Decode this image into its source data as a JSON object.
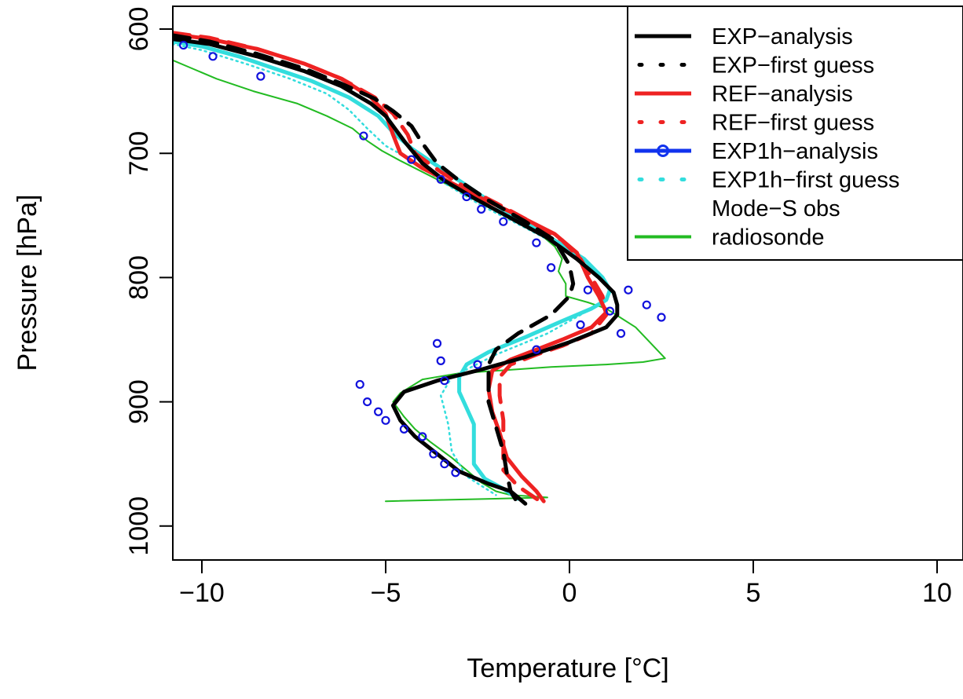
{
  "chart_data": {
    "type": "line",
    "xlabel": "Temperature [°C]",
    "ylabel": "Pressure [hPa]",
    "xlim": [
      -10.8,
      10.8
    ],
    "ylim": [
      1025,
      590
    ],
    "y_reversed": true,
    "x_ticks": [
      {
        "value": -10,
        "label": "−10"
      },
      {
        "value": -5,
        "label": "−5"
      },
      {
        "value": 0,
        "label": "0"
      },
      {
        "value": 5,
        "label": "5"
      },
      {
        "value": 10,
        "label": "10"
      }
    ],
    "y_ticks": [
      {
        "value": 600,
        "label": "600"
      },
      {
        "value": 700,
        "label": "700"
      },
      {
        "value": 800,
        "label": "800"
      },
      {
        "value": 900,
        "label": "900"
      },
      {
        "value": 1000,
        "label": "1000"
      }
    ],
    "grid": false,
    "legend": {
      "position": "top-right"
    },
    "series": [
      {
        "name": "radiosonde",
        "color": "#22bb22",
        "style": "solid-thin",
        "points": [
          [
            -10.8,
            625
          ],
          [
            -10.4,
            630
          ],
          [
            -9.6,
            640
          ],
          [
            -8.6,
            650
          ],
          [
            -7.4,
            660
          ],
          [
            -6.6,
            670
          ],
          [
            -5.9,
            680
          ],
          [
            -5.5,
            690
          ],
          [
            -5.1,
            698
          ],
          [
            -4.6,
            706
          ],
          [
            -3.8,
            718
          ],
          [
            -3.0,
            730
          ],
          [
            -2.0,
            745
          ],
          [
            -1.0,
            760
          ],
          [
            -0.4,
            775
          ],
          [
            -0.2,
            785
          ],
          [
            -0.3,
            795
          ],
          [
            -0.1,
            805
          ],
          [
            -0.1,
            815
          ],
          [
            0.5,
            820
          ],
          [
            1.0,
            825
          ],
          [
            1.8,
            840
          ],
          [
            2.6,
            865
          ],
          [
            2.0,
            868
          ],
          [
            1.0,
            870
          ],
          [
            -0.5,
            872
          ],
          [
            -1.5,
            874
          ],
          [
            -3.0,
            877
          ],
          [
            -4.0,
            882
          ],
          [
            -4.6,
            893
          ],
          [
            -4.8,
            900
          ],
          [
            -4.5,
            912
          ],
          [
            -4.2,
            922
          ],
          [
            -3.8,
            932
          ],
          [
            -3.2,
            945
          ],
          [
            -2.8,
            955
          ],
          [
            -2.4,
            965
          ],
          [
            -2.0,
            972
          ],
          [
            -1.6,
            975
          ],
          [
            -0.6,
            977
          ],
          [
            -5.0,
            980
          ]
        ]
      },
      {
        "name": "EXP1h−first guess",
        "color": "#33dddd",
        "style": "dotted",
        "points": [
          [
            -10.8,
            612
          ],
          [
            -10.0,
            617
          ],
          [
            -8.8,
            628
          ],
          [
            -7.6,
            640
          ],
          [
            -6.6,
            652
          ],
          [
            -6.0,
            665
          ],
          [
            -5.5,
            680
          ],
          [
            -5.0,
            694
          ],
          [
            -4.2,
            707
          ],
          [
            -3.4,
            724
          ],
          [
            -2.4,
            742
          ],
          [
            -1.2,
            760
          ],
          [
            -0.3,
            774
          ],
          [
            0.4,
            786
          ],
          [
            0.9,
            800
          ],
          [
            1.1,
            812
          ],
          [
            0.9,
            820
          ],
          [
            0.3,
            830
          ],
          [
            -0.6,
            845
          ],
          [
            -2.0,
            862
          ],
          [
            -3.2,
            880
          ],
          [
            -3.5,
            895
          ],
          [
            -3.3,
            918
          ],
          [
            -3.2,
            940
          ],
          [
            -2.8,
            960
          ],
          [
            -2.0,
            975
          ]
        ]
      },
      {
        "name": "EXP1h−analysis",
        "color": "#33dddd",
        "style": "solid-thick",
        "points": [
          [
            -10.8,
            610
          ],
          [
            -10.0,
            614
          ],
          [
            -9.0,
            622
          ],
          [
            -8.0,
            632
          ],
          [
            -7.0,
            642
          ],
          [
            -6.0,
            655
          ],
          [
            -5.2,
            670
          ],
          [
            -4.8,
            683
          ],
          [
            -4.3,
            696
          ],
          [
            -3.6,
            710
          ],
          [
            -3.0,
            722
          ],
          [
            -2.2,
            738
          ],
          [
            -1.2,
            756
          ],
          [
            -0.3,
            772
          ],
          [
            0.4,
            785
          ],
          [
            0.9,
            800
          ],
          [
            1.1,
            810
          ],
          [
            1.0,
            818
          ],
          [
            0.6,
            825
          ],
          [
            -0.2,
            835
          ],
          [
            -1.2,
            848
          ],
          [
            -2.2,
            860
          ],
          [
            -2.8,
            870
          ],
          [
            -3.0,
            880
          ],
          [
            -3.0,
            892
          ],
          [
            -2.8,
            905
          ],
          [
            -2.6,
            918
          ],
          [
            -2.6,
            935
          ],
          [
            -2.6,
            950
          ],
          [
            -2.3,
            962
          ],
          [
            -1.8,
            970
          ],
          [
            -1.4,
            978
          ]
        ]
      },
      {
        "name": "REF−first guess",
        "color": "#ee2222",
        "style": "dashed-thick",
        "points": [
          [
            -10.8,
            603
          ],
          [
            -9.8,
            607
          ],
          [
            -8.5,
            616
          ],
          [
            -7.2,
            628
          ],
          [
            -6.2,
            640
          ],
          [
            -5.3,
            655
          ],
          [
            -4.8,
            668
          ],
          [
            -4.4,
            685
          ],
          [
            -4.2,
            700
          ],
          [
            -3.5,
            715
          ],
          [
            -2.8,
            728
          ],
          [
            -2.0,
            740
          ],
          [
            -1.0,
            756
          ],
          [
            -0.2,
            770
          ],
          [
            0.3,
            785
          ],
          [
            0.6,
            800
          ],
          [
            0.9,
            815
          ],
          [
            1.0,
            830
          ],
          [
            0.6,
            845
          ],
          [
            -0.2,
            855
          ],
          [
            -0.9,
            862
          ],
          [
            -1.6,
            870
          ],
          [
            -1.9,
            880
          ],
          [
            -1.9,
            895
          ],
          [
            -1.8,
            915
          ],
          [
            -1.8,
            938
          ],
          [
            -1.8,
            955
          ],
          [
            -1.4,
            968
          ],
          [
            -0.8,
            980
          ]
        ]
      },
      {
        "name": "REF−analysis",
        "color": "#ee2222",
        "style": "solid-thick",
        "points": [
          [
            -10.8,
            604
          ],
          [
            -9.8,
            608
          ],
          [
            -8.5,
            616
          ],
          [
            -7.2,
            628
          ],
          [
            -6.2,
            640
          ],
          [
            -5.4,
            655
          ],
          [
            -5.0,
            668
          ],
          [
            -4.8,
            685
          ],
          [
            -4.6,
            700
          ],
          [
            -4.0,
            712
          ],
          [
            -3.2,
            724
          ],
          [
            -2.4,
            736
          ],
          [
            -1.4,
            750
          ],
          [
            -0.4,
            765
          ],
          [
            0.2,
            780
          ],
          [
            0.5,
            800
          ],
          [
            0.8,
            815
          ],
          [
            1.0,
            828
          ],
          [
            0.6,
            840
          ],
          [
            -0.2,
            850
          ],
          [
            -0.9,
            858
          ],
          [
            -1.6,
            866
          ],
          [
            -2.1,
            875
          ],
          [
            -2.2,
            890
          ],
          [
            -2.1,
            908
          ],
          [
            -1.9,
            925
          ],
          [
            -1.7,
            945
          ],
          [
            -1.3,
            960
          ],
          [
            -0.9,
            972
          ],
          [
            -0.7,
            980
          ]
        ]
      },
      {
        "name": "EXP−first guess",
        "color": "#000000",
        "style": "dashed-thick",
        "points": [
          [
            -10.8,
            605
          ],
          [
            -9.8,
            610
          ],
          [
            -8.5,
            620
          ],
          [
            -7.2,
            632
          ],
          [
            -6.2,
            644
          ],
          [
            -5.3,
            656
          ],
          [
            -4.8,
            666
          ],
          [
            -4.3,
            678
          ],
          [
            -4.0,
            692
          ],
          [
            -3.6,
            708
          ],
          [
            -3.0,
            722
          ],
          [
            -2.2,
            738
          ],
          [
            -1.2,
            755
          ],
          [
            -0.4,
            770
          ],
          [
            0.0,
            790
          ],
          [
            0.1,
            805
          ],
          [
            0.0,
            815
          ],
          [
            -0.5,
            830
          ],
          [
            -1.4,
            845
          ],
          [
            -2.0,
            858
          ],
          [
            -2.2,
            870
          ],
          [
            -2.2,
            885
          ],
          [
            -2.2,
            900
          ],
          [
            -2.0,
            920
          ],
          [
            -1.8,
            940
          ],
          [
            -1.7,
            958
          ],
          [
            -1.6,
            972
          ],
          [
            -1.4,
            982
          ]
        ]
      },
      {
        "name": "EXP−analysis",
        "color": "#000000",
        "style": "solid-thick",
        "points": [
          [
            -10.8,
            608
          ],
          [
            -9.8,
            612
          ],
          [
            -8.5,
            622
          ],
          [
            -7.2,
            634
          ],
          [
            -6.2,
            646
          ],
          [
            -5.4,
            660
          ],
          [
            -5.0,
            670
          ],
          [
            -4.5,
            690
          ],
          [
            -4.0,
            708
          ],
          [
            -3.4,
            722
          ],
          [
            -2.6,
            736
          ],
          [
            -1.6,
            752
          ],
          [
            -0.6,
            768
          ],
          [
            0.2,
            785
          ],
          [
            0.8,
            800
          ],
          [
            1.2,
            812
          ],
          [
            1.3,
            822
          ],
          [
            1.3,
            830
          ],
          [
            1.0,
            840
          ],
          [
            0.0,
            852
          ],
          [
            -1.2,
            864
          ],
          [
            -2.4,
            874
          ],
          [
            -3.6,
            883
          ],
          [
            -4.5,
            892
          ],
          [
            -4.8,
            903
          ],
          [
            -4.6,
            915
          ],
          [
            -4.2,
            928
          ],
          [
            -3.6,
            942
          ],
          [
            -3.0,
            956
          ],
          [
            -2.2,
            966
          ],
          [
            -1.6,
            972
          ],
          [
            -1.2,
            982
          ]
        ]
      },
      {
        "name": "Mode−S obs",
        "color": "#1111dd",
        "style": "circles",
        "points": [
          [
            -10.5,
            613
          ],
          [
            -9.7,
            622
          ],
          [
            -8.4,
            638
          ],
          [
            -5.6,
            686
          ],
          [
            -4.3,
            705
          ],
          [
            -3.5,
            721
          ],
          [
            -2.8,
            735
          ],
          [
            -2.4,
            745
          ],
          [
            -1.8,
            755
          ],
          [
            -0.9,
            772
          ],
          [
            -0.5,
            792
          ],
          [
            0.5,
            810
          ],
          [
            1.6,
            810
          ],
          [
            2.1,
            822
          ],
          [
            2.5,
            832
          ],
          [
            1.1,
            827
          ],
          [
            1.4,
            845
          ],
          [
            0.3,
            838
          ],
          [
            -0.9,
            858
          ],
          [
            -2.5,
            870
          ],
          [
            -3.5,
            867
          ],
          [
            -3.4,
            883
          ],
          [
            -3.6,
            853
          ],
          [
            -5.7,
            886
          ],
          [
            -5.5,
            900
          ],
          [
            -5.2,
            908
          ],
          [
            -5.0,
            915
          ],
          [
            -4.5,
            922
          ],
          [
            -4.0,
            928
          ],
          [
            -3.7,
            942
          ],
          [
            -3.4,
            950
          ],
          [
            -3.1,
            957
          ]
        ]
      }
    ],
    "legend_entries": [
      {
        "label": "EXP−analysis",
        "color": "#000000",
        "style": "solid-thick"
      },
      {
        "label": "EXP−first guess",
        "color": "#000000",
        "style": "dotted"
      },
      {
        "label": "REF−analysis",
        "color": "#ee2222",
        "style": "solid-thick"
      },
      {
        "label": "REF−first guess",
        "color": "#ee2222",
        "style": "dotted"
      },
      {
        "label": "EXP1h−analysis",
        "color": "#1133ee",
        "style": "line-circle"
      },
      {
        "label": "EXP1h−first guess",
        "color": "#33dddd",
        "style": "dotted"
      },
      {
        "label": "Mode−S obs",
        "color": "#000000",
        "style": "none"
      },
      {
        "label": "radiosonde",
        "color": "#22bb22",
        "style": "solid"
      }
    ]
  }
}
